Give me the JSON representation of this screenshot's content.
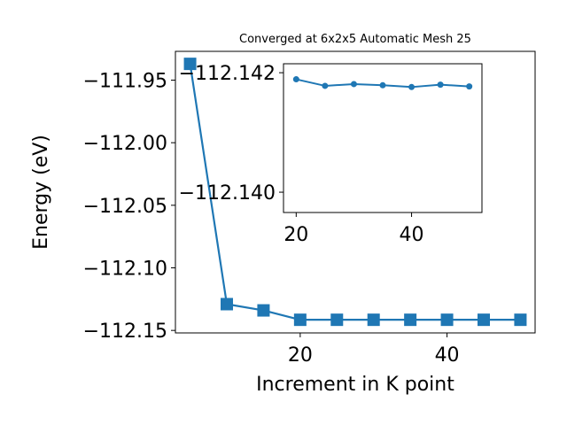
{
  "chart_data": [
    {
      "type": "line",
      "title": "Converged at 6x2x5 Automatic Mesh 25",
      "xlabel": "Increment in K point",
      "ylabel": "Energy (eV)",
      "xlim": [
        3,
        52
      ],
      "ylim": [
        -112.152,
        -111.927
      ],
      "xticks": [
        20,
        40
      ],
      "xtick_labels": [
        "20",
        "40"
      ],
      "yticks": [
        -111.95,
        -112.0,
        -112.05,
        -112.1,
        -112.15
      ],
      "ytick_labels": [
        "−111.95",
        "−112.00",
        "−112.05",
        "−112.10",
        "−112.15"
      ],
      "grid": false,
      "marker": "square",
      "color": "#1f77b4",
      "series": [
        {
          "x": [
            5,
            10,
            15,
            20,
            25,
            30,
            35,
            40,
            45,
            50
          ],
          "values": [
            -111.937,
            -112.129,
            -112.134,
            -112.1415,
            -112.1415,
            -112.1415,
            -112.1415,
            -112.1415,
            -112.1415,
            -112.1415
          ]
        }
      ]
    },
    {
      "type": "line",
      "title": "",
      "xlabel": "",
      "ylabel": "",
      "inset": true,
      "xlim": [
        17.8,
        52.2
      ],
      "ylim": [
        -112.13966,
        -112.14215
      ],
      "xticks": [
        20,
        40
      ],
      "xtick_labels": [
        "20",
        "40"
      ],
      "yticks": [
        -112.142,
        -112.14
      ],
      "ytick_labels": [
        "−112.142",
        "−112.140"
      ],
      "grid": false,
      "marker": "circle",
      "color": "#1f77b4",
      "series": [
        {
          "x": [
            20,
            25,
            30,
            35,
            40,
            45,
            50
          ],
          "values": [
            -112.14189,
            -112.14178,
            -112.14181,
            -112.14179,
            -112.14176,
            -112.1418,
            -112.14177
          ]
        }
      ]
    }
  ]
}
